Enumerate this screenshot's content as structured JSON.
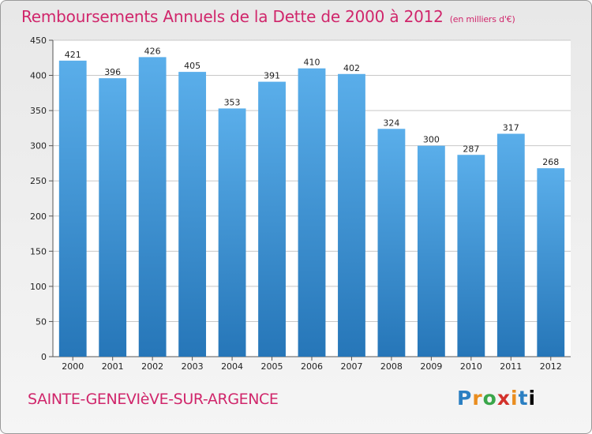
{
  "header": {
    "title": "Remboursements Annuels de la Dette de 2000 à 2012",
    "subtitle": "(en milliers d'€)"
  },
  "footer": {
    "commune": "SAINTE-GENEVIèVE-SUR-ARGENCE",
    "logo_letters": [
      "P",
      "r",
      "o",
      "x",
      "i",
      "t",
      "i"
    ]
  },
  "colors": {
    "accent": "#d0266b",
    "bar_top": "#5aaeea",
    "bar_bottom": "#2676b8",
    "grid": "#c8c8c8"
  },
  "chart_data": {
    "type": "bar",
    "title": "Remboursements Annuels de la Dette de 2000 à 2012",
    "subtitle": "(en milliers d'€)",
    "categories": [
      "2000",
      "2001",
      "2002",
      "2003",
      "2004",
      "2005",
      "2006",
      "2007",
      "2008",
      "2009",
      "2010",
      "2011",
      "2012"
    ],
    "values": [
      421,
      396,
      426,
      405,
      353,
      391,
      410,
      402,
      324,
      300,
      287,
      317,
      268
    ],
    "ylim": [
      0,
      450
    ],
    "yticks": [
      0,
      50,
      100,
      150,
      200,
      250,
      300,
      350,
      400,
      450
    ],
    "grid": true,
    "xlabel": "",
    "ylabel": ""
  }
}
